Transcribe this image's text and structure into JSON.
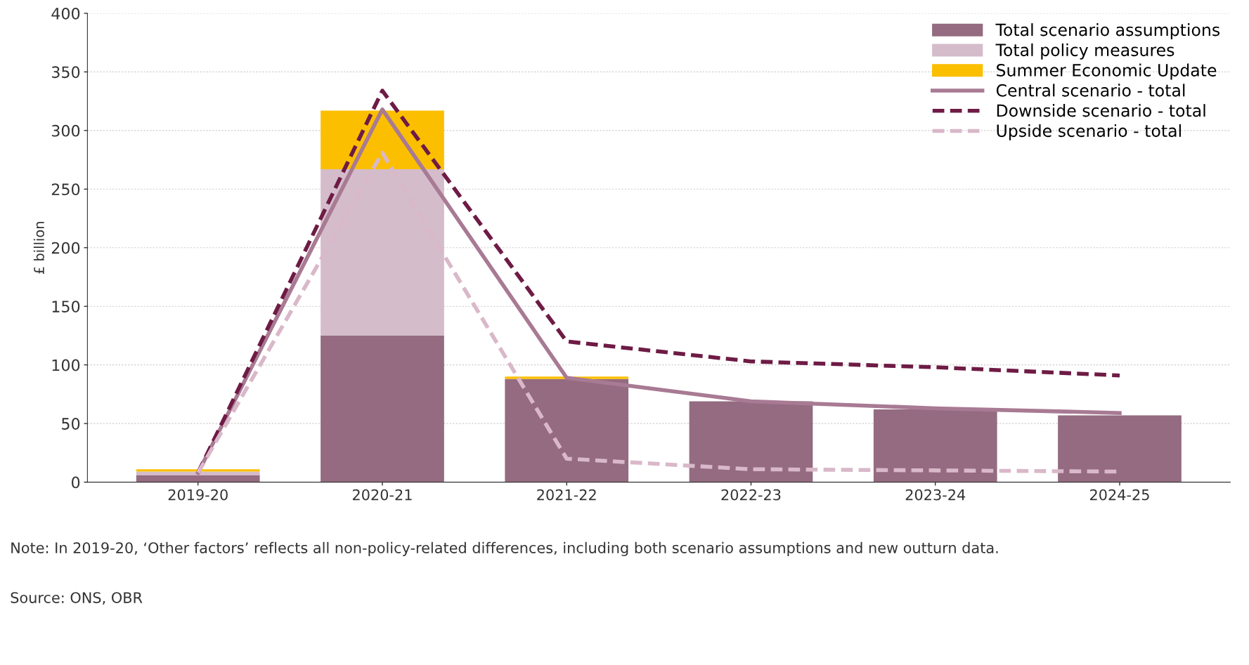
{
  "chart_data": {
    "type": "bar",
    "stacked": true,
    "ylabel": "£ billion",
    "categories": [
      "2019-20",
      "2020-21",
      "2021-22",
      "2022-23",
      "2023-24",
      "2024-25"
    ],
    "series": [
      {
        "name": "Total scenario assumptions",
        "color": "#946b80",
        "values": [
          6,
          125,
          88,
          69,
          62,
          57
        ]
      },
      {
        "name": "Total policy measures",
        "color": "#d4bccb",
        "values": [
          3,
          142,
          0,
          0,
          0,
          0
        ]
      },
      {
        "name": "Summer Economic Update",
        "color": "#fbbf00",
        "values": [
          2,
          50,
          2,
          0,
          0,
          0
        ]
      },
      {
        "name": "Central scenario - total",
        "type": "line",
        "line_style": "solid",
        "color": "#a87a93",
        "values": [
          8,
          318,
          89,
          69,
          63,
          59
        ]
      },
      {
        "name": "Downside scenario - total",
        "type": "line",
        "line_style": "dashed",
        "color": "#6e1b45",
        "values": [
          8,
          334,
          120,
          103,
          98,
          91
        ]
      },
      {
        "name": "Upside scenario - total",
        "type": "line",
        "line_style": "dashed",
        "color": "#d9b8c9",
        "values": [
          8,
          281,
          20,
          11,
          10,
          9
        ]
      }
    ],
    "ylim": [
      0,
      400
    ],
    "yticks": [
      0,
      50,
      100,
      150,
      200,
      250,
      300,
      350,
      400
    ],
    "grid": "y",
    "legend": "top right",
    "annotations": [
      "Note: In 2019-20, ‘Other factors’ reflects all non-policy-related differences, including both scenario assumptions and new outturn data.",
      "Source: ONS, OBR"
    ]
  }
}
